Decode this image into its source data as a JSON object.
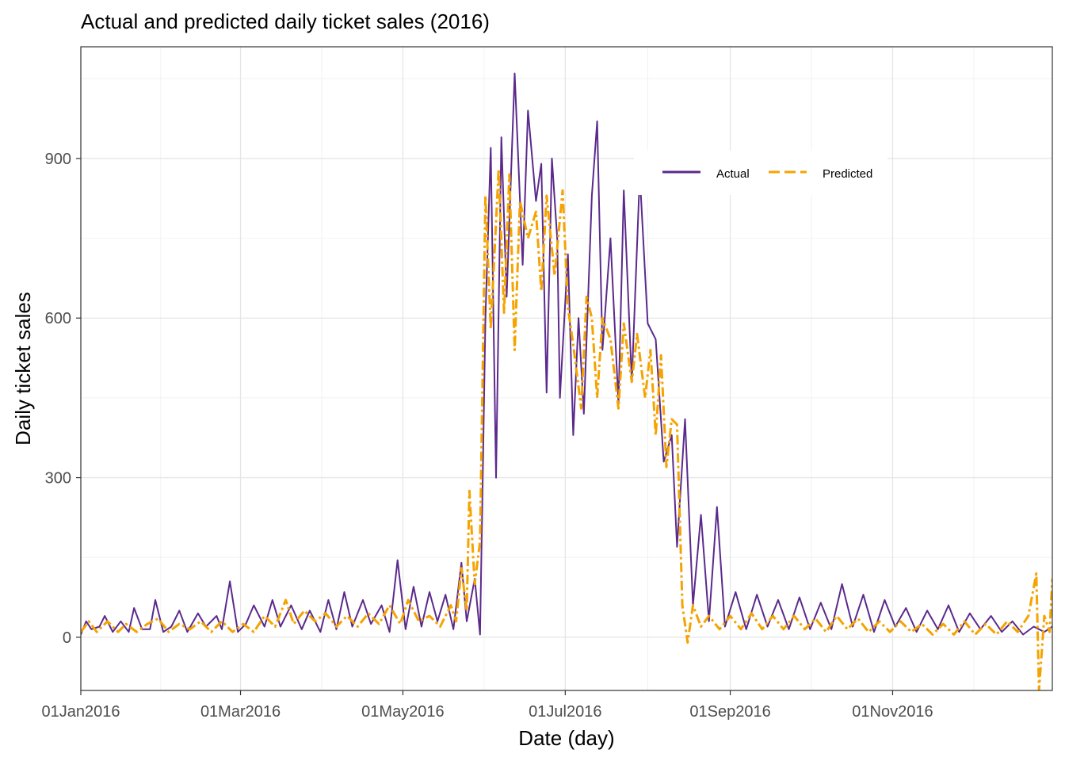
{
  "colors": {
    "actual": "#5b2a8c",
    "predicted": "#f5a300",
    "grid_major": "#e6e6e6",
    "grid_minor": "#f2f2f2",
    "frame": "#333333"
  },
  "chart_data": {
    "type": "line",
    "title": "Actual and predicted daily ticket sales (2016)",
    "xlabel": "Date (day)",
    "ylabel": "Daily ticket sales",
    "x_axis": {
      "type": "date",
      "range": [
        "2016-01-01",
        "2016-12-31"
      ],
      "ticks": [
        {
          "date": "2016-01-01",
          "label": "01Jan2016"
        },
        {
          "date": "2016-03-01",
          "label": "01Mar2016"
        },
        {
          "date": "2016-05-01",
          "label": "01May2016"
        },
        {
          "date": "2016-07-01",
          "label": "01Jul2016"
        },
        {
          "date": "2016-09-01",
          "label": "01Sep2016"
        },
        {
          "date": "2016-11-01",
          "label": "01Nov2016"
        }
      ]
    },
    "y_axis": {
      "range": [
        -100,
        1110
      ],
      "ticks": [
        0,
        300,
        600,
        900
      ]
    },
    "grid": true,
    "legend": {
      "position": "top-right inside",
      "orientation": "horizontal"
    },
    "series": [
      {
        "name": "Actual",
        "style": "solid",
        "points": [
          [
            "2016-01-01",
            5
          ],
          [
            "2016-01-03",
            30
          ],
          [
            "2016-01-05",
            15
          ],
          [
            "2016-01-08",
            20
          ],
          [
            "2016-01-10",
            40
          ],
          [
            "2016-01-13",
            10
          ],
          [
            "2016-01-16",
            30
          ],
          [
            "2016-01-19",
            10
          ],
          [
            "2016-01-21",
            55
          ],
          [
            "2016-01-24",
            15
          ],
          [
            "2016-01-27",
            15
          ],
          [
            "2016-01-29",
            70
          ],
          [
            "2016-02-01",
            10
          ],
          [
            "2016-02-04",
            20
          ],
          [
            "2016-02-07",
            50
          ],
          [
            "2016-02-10",
            10
          ],
          [
            "2016-02-14",
            45
          ],
          [
            "2016-02-17",
            20
          ],
          [
            "2016-02-21",
            40
          ],
          [
            "2016-02-23",
            15
          ],
          [
            "2016-02-26",
            105
          ],
          [
            "2016-02-29",
            10
          ],
          [
            "2016-03-03",
            25
          ],
          [
            "2016-03-06",
            60
          ],
          [
            "2016-03-10",
            20
          ],
          [
            "2016-03-13",
            70
          ],
          [
            "2016-03-16",
            20
          ],
          [
            "2016-03-20",
            60
          ],
          [
            "2016-03-24",
            15
          ],
          [
            "2016-03-27",
            50
          ],
          [
            "2016-03-31",
            10
          ],
          [
            "2016-04-03",
            70
          ],
          [
            "2016-04-06",
            15
          ],
          [
            "2016-04-09",
            85
          ],
          [
            "2016-04-12",
            20
          ],
          [
            "2016-04-16",
            70
          ],
          [
            "2016-04-19",
            25
          ],
          [
            "2016-04-23",
            60
          ],
          [
            "2016-04-26",
            10
          ],
          [
            "2016-04-29",
            145
          ],
          [
            "2016-05-02",
            15
          ],
          [
            "2016-05-05",
            95
          ],
          [
            "2016-05-08",
            20
          ],
          [
            "2016-05-11",
            85
          ],
          [
            "2016-05-14",
            30
          ],
          [
            "2016-05-17",
            80
          ],
          [
            "2016-05-20",
            15
          ],
          [
            "2016-05-23",
            140
          ],
          [
            "2016-05-25",
            30
          ],
          [
            "2016-05-28",
            110
          ],
          [
            "2016-05-30",
            5
          ],
          [
            "2016-06-01",
            600
          ],
          [
            "2016-06-03",
            920
          ],
          [
            "2016-06-05",
            300
          ],
          [
            "2016-06-07",
            940
          ],
          [
            "2016-06-09",
            640
          ],
          [
            "2016-06-12",
            1060
          ],
          [
            "2016-06-15",
            700
          ],
          [
            "2016-06-17",
            990
          ],
          [
            "2016-06-20",
            820
          ],
          [
            "2016-06-22",
            890
          ],
          [
            "2016-06-24",
            460
          ],
          [
            "2016-06-26",
            900
          ],
          [
            "2016-06-28",
            750
          ],
          [
            "2016-06-29",
            450
          ],
          [
            "2016-07-02",
            720
          ],
          [
            "2016-07-04",
            380
          ],
          [
            "2016-07-06",
            600
          ],
          [
            "2016-07-08",
            420
          ],
          [
            "2016-07-11",
            830
          ],
          [
            "2016-07-13",
            970
          ],
          [
            "2016-07-15",
            540
          ],
          [
            "2016-07-18",
            750
          ],
          [
            "2016-07-21",
            440
          ],
          [
            "2016-07-23",
            840
          ],
          [
            "2016-07-26",
            480
          ],
          [
            "2016-07-29",
            870
          ],
          [
            "2016-08-01",
            590
          ],
          [
            "2016-08-04",
            560
          ],
          [
            "2016-08-07",
            330
          ],
          [
            "2016-08-10",
            380
          ],
          [
            "2016-08-12",
            170
          ],
          [
            "2016-08-15",
            410
          ],
          [
            "2016-08-18",
            60
          ],
          [
            "2016-08-21",
            230
          ],
          [
            "2016-08-24",
            30
          ],
          [
            "2016-08-27",
            245
          ],
          [
            "2016-08-30",
            20
          ],
          [
            "2016-09-03",
            85
          ],
          [
            "2016-09-07",
            15
          ],
          [
            "2016-09-11",
            80
          ],
          [
            "2016-09-15",
            20
          ],
          [
            "2016-09-19",
            70
          ],
          [
            "2016-09-23",
            15
          ],
          [
            "2016-09-27",
            75
          ],
          [
            "2016-10-01",
            15
          ],
          [
            "2016-10-05",
            65
          ],
          [
            "2016-10-09",
            15
          ],
          [
            "2016-10-13",
            100
          ],
          [
            "2016-10-17",
            20
          ],
          [
            "2016-10-21",
            80
          ],
          [
            "2016-10-25",
            10
          ],
          [
            "2016-10-29",
            70
          ],
          [
            "2016-11-02",
            20
          ],
          [
            "2016-11-06",
            55
          ],
          [
            "2016-11-10",
            10
          ],
          [
            "2016-11-14",
            50
          ],
          [
            "2016-11-18",
            15
          ],
          [
            "2016-11-22",
            60
          ],
          [
            "2016-11-26",
            10
          ],
          [
            "2016-11-30",
            45
          ],
          [
            "2016-12-04",
            15
          ],
          [
            "2016-12-08",
            40
          ],
          [
            "2016-12-12",
            10
          ],
          [
            "2016-12-16",
            30
          ],
          [
            "2016-12-20",
            5
          ],
          [
            "2016-12-24",
            20
          ],
          [
            "2016-12-28",
            10
          ],
          [
            "2016-12-31",
            20
          ]
        ]
      },
      {
        "name": "Predicted",
        "style": "dashed",
        "points": [
          [
            "2016-01-01",
            10
          ],
          [
            "2016-01-04",
            30
          ],
          [
            "2016-01-07",
            10
          ],
          [
            "2016-01-11",
            30
          ],
          [
            "2016-01-15",
            10
          ],
          [
            "2016-01-18",
            25
          ],
          [
            "2016-01-22",
            10
          ],
          [
            "2016-01-26",
            25
          ],
          [
            "2016-01-30",
            35
          ],
          [
            "2016-02-03",
            10
          ],
          [
            "2016-02-07",
            25
          ],
          [
            "2016-02-11",
            15
          ],
          [
            "2016-02-15",
            30
          ],
          [
            "2016-02-19",
            10
          ],
          [
            "2016-02-23",
            30
          ],
          [
            "2016-02-27",
            10
          ],
          [
            "2016-03-02",
            25
          ],
          [
            "2016-03-06",
            10
          ],
          [
            "2016-03-10",
            40
          ],
          [
            "2016-03-14",
            20
          ],
          [
            "2016-03-18",
            70
          ],
          [
            "2016-03-21",
            25
          ],
          [
            "2016-03-25",
            50
          ],
          [
            "2016-03-29",
            30
          ],
          [
            "2016-04-02",
            45
          ],
          [
            "2016-04-06",
            20
          ],
          [
            "2016-04-10",
            40
          ],
          [
            "2016-04-14",
            20
          ],
          [
            "2016-04-18",
            45
          ],
          [
            "2016-04-22",
            25
          ],
          [
            "2016-04-26",
            60
          ],
          [
            "2016-04-30",
            25
          ],
          [
            "2016-05-03",
            70
          ],
          [
            "2016-05-07",
            30
          ],
          [
            "2016-05-11",
            40
          ],
          [
            "2016-05-15",
            20
          ],
          [
            "2016-05-19",
            60
          ],
          [
            "2016-05-21",
            30
          ],
          [
            "2016-05-23",
            130
          ],
          [
            "2016-05-25",
            50
          ],
          [
            "2016-05-26",
            275
          ],
          [
            "2016-05-28",
            100
          ],
          [
            "2016-05-30",
            180
          ],
          [
            "2016-06-01",
            830
          ],
          [
            "2016-06-03",
            580
          ],
          [
            "2016-06-06",
            880
          ],
          [
            "2016-06-08",
            610
          ],
          [
            "2016-06-10",
            870
          ],
          [
            "2016-06-12",
            540
          ],
          [
            "2016-06-14",
            820
          ],
          [
            "2016-06-17",
            750
          ],
          [
            "2016-06-20",
            800
          ],
          [
            "2016-06-22",
            650
          ],
          [
            "2016-06-24",
            830
          ],
          [
            "2016-06-27",
            680
          ],
          [
            "2016-06-30",
            840
          ],
          [
            "2016-07-02",
            620
          ],
          [
            "2016-07-04",
            550
          ],
          [
            "2016-07-07",
            430
          ],
          [
            "2016-07-09",
            640
          ],
          [
            "2016-07-11",
            600
          ],
          [
            "2016-07-13",
            450
          ],
          [
            "2016-07-15",
            600
          ],
          [
            "2016-07-18",
            560
          ],
          [
            "2016-07-21",
            430
          ],
          [
            "2016-07-23",
            590
          ],
          [
            "2016-07-26",
            480
          ],
          [
            "2016-07-28",
            570
          ],
          [
            "2016-07-31",
            450
          ],
          [
            "2016-08-02",
            540
          ],
          [
            "2016-08-04",
            380
          ],
          [
            "2016-08-06",
            530
          ],
          [
            "2016-08-08",
            320
          ],
          [
            "2016-08-10",
            410
          ],
          [
            "2016-08-12",
            400
          ],
          [
            "2016-08-14",
            60
          ],
          [
            "2016-08-16",
            -10
          ],
          [
            "2016-08-18",
            60
          ],
          [
            "2016-08-21",
            20
          ],
          [
            "2016-08-24",
            40
          ],
          [
            "2016-08-28",
            15
          ],
          [
            "2016-09-01",
            40
          ],
          [
            "2016-09-05",
            15
          ],
          [
            "2016-09-09",
            45
          ],
          [
            "2016-09-13",
            15
          ],
          [
            "2016-09-17",
            40
          ],
          [
            "2016-09-21",
            15
          ],
          [
            "2016-09-25",
            40
          ],
          [
            "2016-09-29",
            15
          ],
          [
            "2016-10-03",
            35
          ],
          [
            "2016-10-07",
            10
          ],
          [
            "2016-10-11",
            40
          ],
          [
            "2016-10-15",
            15
          ],
          [
            "2016-10-19",
            35
          ],
          [
            "2016-10-23",
            10
          ],
          [
            "2016-10-27",
            30
          ],
          [
            "2016-10-31",
            10
          ],
          [
            "2016-11-04",
            30
          ],
          [
            "2016-11-08",
            10
          ],
          [
            "2016-11-12",
            25
          ],
          [
            "2016-11-16",
            5
          ],
          [
            "2016-11-20",
            25
          ],
          [
            "2016-11-24",
            5
          ],
          [
            "2016-11-28",
            30
          ],
          [
            "2016-12-02",
            5
          ],
          [
            "2016-12-06",
            25
          ],
          [
            "2016-12-10",
            5
          ],
          [
            "2016-12-14",
            30
          ],
          [
            "2016-12-18",
            10
          ],
          [
            "2016-12-22",
            40
          ],
          [
            "2016-12-25",
            120
          ],
          [
            "2016-12-26",
            -100
          ],
          [
            "2016-12-28",
            40
          ],
          [
            "2016-12-30",
            10
          ],
          [
            "2016-12-31",
            110
          ]
        ]
      }
    ]
  }
}
